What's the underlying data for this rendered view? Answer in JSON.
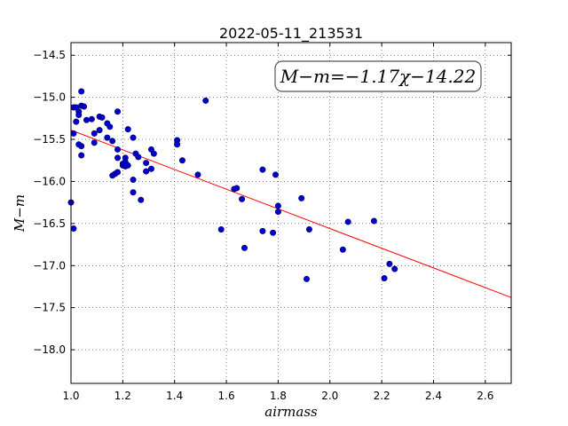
{
  "chart_data": {
    "type": "scatter",
    "title": "2022-05-11_213531",
    "xlabel": "airmass",
    "ylabel": "M−m",
    "xlim": [
      1.0,
      2.7
    ],
    "ylim": [
      -18.4,
      -14.35
    ],
    "y_inverted": false,
    "grid": true,
    "x_ticks": [
      "1.0",
      "1.2",
      "1.4",
      "1.6",
      "1.8",
      "2.0",
      "2.2",
      "2.4",
      "2.6"
    ],
    "x_tick_values": [
      1.0,
      1.2,
      1.4,
      1.6,
      1.8,
      2.0,
      2.2,
      2.4,
      2.6
    ],
    "y_ticks": [
      "−14.5",
      "−15.0",
      "−15.5",
      "−16.0",
      "−16.5",
      "−17.0",
      "−17.5",
      "−18.0"
    ],
    "y_tick_values": [
      -14.5,
      -15.0,
      -15.5,
      -16.0,
      -16.5,
      -17.0,
      -17.5,
      -18.0
    ],
    "annotation": "M−m=−1.17χ−14.22",
    "annotation_position": "top-right",
    "fit_line": {
      "slope": -1.17,
      "intercept": -14.22,
      "color": "#ff0000"
    },
    "point_color": "#0000cc",
    "points": [
      {
        "x": 1.0,
        "y": -16.25
      },
      {
        "x": 1.01,
        "y": -15.12
      },
      {
        "x": 1.01,
        "y": -15.43
      },
      {
        "x": 1.01,
        "y": -16.56
      },
      {
        "x": 1.02,
        "y": -15.29
      },
      {
        "x": 1.02,
        "y": -15.12
      },
      {
        "x": 1.03,
        "y": -15.17
      },
      {
        "x": 1.03,
        "y": -15.21
      },
      {
        "x": 1.03,
        "y": -15.56
      },
      {
        "x": 1.04,
        "y": -15.1
      },
      {
        "x": 1.04,
        "y": -15.58
      },
      {
        "x": 1.04,
        "y": -15.69
      },
      {
        "x": 1.04,
        "y": -14.93
      },
      {
        "x": 1.05,
        "y": -15.11
      },
      {
        "x": 1.06,
        "y": -15.27
      },
      {
        "x": 1.08,
        "y": -15.26
      },
      {
        "x": 1.09,
        "y": -15.43
      },
      {
        "x": 1.09,
        "y": -15.54
      },
      {
        "x": 1.11,
        "y": -15.23
      },
      {
        "x": 1.11,
        "y": -15.39
      },
      {
        "x": 1.12,
        "y": -15.24
      },
      {
        "x": 1.14,
        "y": -15.31
      },
      {
        "x": 1.14,
        "y": -15.48
      },
      {
        "x": 1.15,
        "y": -15.35
      },
      {
        "x": 1.16,
        "y": -15.52
      },
      {
        "x": 1.16,
        "y": -15.93
      },
      {
        "x": 1.17,
        "y": -15.91
      },
      {
        "x": 1.18,
        "y": -15.17
      },
      {
        "x": 1.18,
        "y": -15.62
      },
      {
        "x": 1.18,
        "y": -15.72
      },
      {
        "x": 1.18,
        "y": -15.89
      },
      {
        "x": 1.2,
        "y": -15.79
      },
      {
        "x": 1.2,
        "y": -15.81
      },
      {
        "x": 1.21,
        "y": -15.72
      },
      {
        "x": 1.21,
        "y": -15.82
      },
      {
        "x": 1.21,
        "y": -15.77
      },
      {
        "x": 1.22,
        "y": -15.81
      },
      {
        "x": 1.22,
        "y": -15.38
      },
      {
        "x": 1.24,
        "y": -15.48
      },
      {
        "x": 1.24,
        "y": -15.98
      },
      {
        "x": 1.24,
        "y": -16.13
      },
      {
        "x": 1.25,
        "y": -15.67
      },
      {
        "x": 1.26,
        "y": -15.71
      },
      {
        "x": 1.27,
        "y": -16.22
      },
      {
        "x": 1.29,
        "y": -15.88
      },
      {
        "x": 1.29,
        "y": -15.78
      },
      {
        "x": 1.31,
        "y": -15.62
      },
      {
        "x": 1.31,
        "y": -15.85
      },
      {
        "x": 1.32,
        "y": -15.67
      },
      {
        "x": 1.41,
        "y": -15.51
      },
      {
        "x": 1.41,
        "y": -15.56
      },
      {
        "x": 1.43,
        "y": -15.75
      },
      {
        "x": 1.49,
        "y": -15.92
      },
      {
        "x": 1.52,
        "y": -15.04
      },
      {
        "x": 1.58,
        "y": -16.57
      },
      {
        "x": 1.63,
        "y": -16.09
      },
      {
        "x": 1.64,
        "y": -16.08
      },
      {
        "x": 1.66,
        "y": -16.21
      },
      {
        "x": 1.67,
        "y": -16.79
      },
      {
        "x": 1.74,
        "y": -15.86
      },
      {
        "x": 1.74,
        "y": -16.59
      },
      {
        "x": 1.78,
        "y": -16.61
      },
      {
        "x": 1.79,
        "y": -15.92
      },
      {
        "x": 1.8,
        "y": -16.29
      },
      {
        "x": 1.8,
        "y": -16.36
      },
      {
        "x": 1.89,
        "y": -16.2
      },
      {
        "x": 1.91,
        "y": -17.16
      },
      {
        "x": 1.92,
        "y": -16.57
      },
      {
        "x": 2.05,
        "y": -16.81
      },
      {
        "x": 2.07,
        "y": -16.48
      },
      {
        "x": 2.17,
        "y": -16.47
      },
      {
        "x": 2.21,
        "y": -17.15
      },
      {
        "x": 2.23,
        "y": -16.98
      },
      {
        "x": 2.25,
        "y": -17.04
      }
    ]
  }
}
